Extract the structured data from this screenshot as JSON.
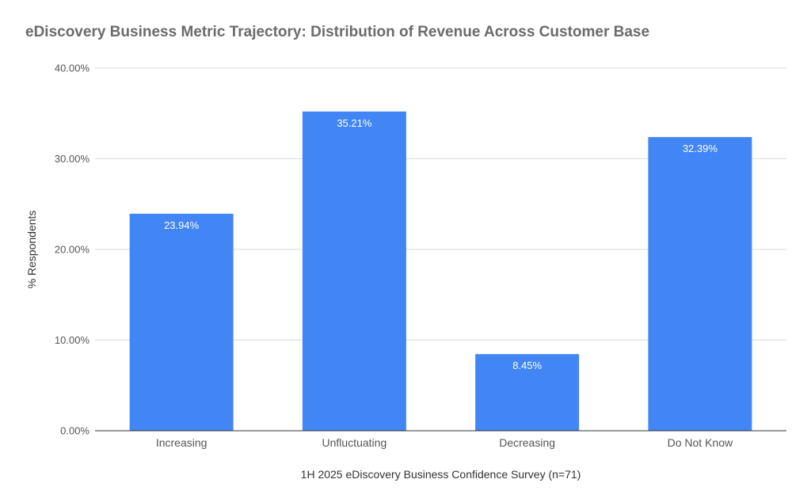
{
  "chart_data": {
    "type": "bar",
    "title": "eDiscovery Business Metric Trajectory: Distribution of Revenue Across Customer Base",
    "xlabel": "1H 2025 eDiscovery Business Confidence Survey (n=71)",
    "ylabel": "% Respondents",
    "categories": [
      "Increasing",
      "Unfluctuating",
      "Decreasing",
      "Do Not Know"
    ],
    "values": [
      23.94,
      35.21,
      8.45,
      32.39
    ],
    "value_labels": [
      "23.94%",
      "35.21%",
      "8.45%",
      "32.39%"
    ],
    "ylim": [
      0,
      40
    ],
    "yticks": [
      0,
      10,
      20,
      30,
      40
    ],
    "ytick_labels": [
      "0.00%",
      "10.00%",
      "20.00%",
      "30.00%",
      "40.00%"
    ],
    "grid": true,
    "legend": "none",
    "colors": {
      "bar": "#4285f4",
      "grid": "#d9d9d9",
      "axis": "#333333"
    }
  }
}
